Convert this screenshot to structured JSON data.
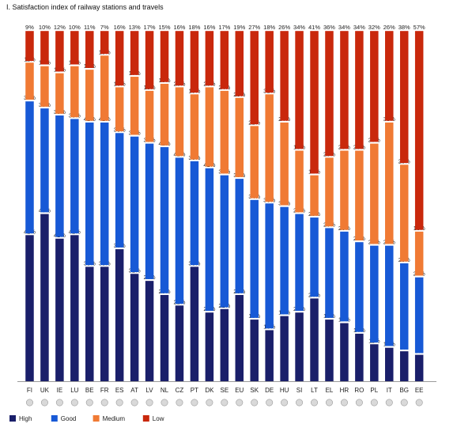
{
  "chart_data": {
    "type": "bar",
    "stacked": true,
    "title": "I.  Satisfaction index of railway stations and travels",
    "categories": [
      "FI",
      "UK",
      "IE",
      "LU",
      "BE",
      "FR",
      "ES",
      "AT",
      "LV",
      "NL",
      "CZ",
      "PT",
      "DK",
      "SE",
      "EU",
      "SK",
      "DE",
      "HU",
      "SI",
      "LT",
      "EL",
      "HR",
      "RO",
      "PL",
      "IT",
      "BG",
      "EE"
    ],
    "series": [
      {
        "name": "High",
        "color": "#1a1f6a",
        "values": [
          42,
          48,
          41,
          42,
          33,
          33,
          38,
          31,
          29,
          25,
          22,
          33,
          20,
          21,
          25,
          18,
          15,
          19,
          20,
          24,
          18,
          17,
          14,
          11,
          10,
          9,
          8
        ]
      },
      {
        "name": "Good",
        "color": "#1759d6",
        "values": [
          38,
          30,
          35,
          33,
          41,
          41,
          33,
          39,
          39,
          42,
          42,
          30,
          41,
          38,
          33,
          34,
          36,
          31,
          28,
          23,
          26,
          26,
          26,
          28,
          29,
          25,
          22
        ]
      },
      {
        "name": "Medium",
        "color": "#f07a34",
        "values": [
          11,
          12,
          12,
          15,
          15,
          19,
          13,
          17,
          15,
          18,
          20,
          19,
          23,
          24,
          23,
          21,
          31,
          24,
          18,
          12,
          20,
          23,
          26,
          29,
          35,
          28,
          13
        ]
      },
      {
        "name": "Low",
        "color": "#c9280c",
        "values": [
          9,
          10,
          12,
          10,
          11,
          7,
          16,
          13,
          17,
          15,
          16,
          18,
          16,
          17,
          19,
          27,
          18,
          26,
          34,
          41,
          36,
          34,
          34,
          32,
          26,
          38,
          57
        ]
      }
    ],
    "value_suffix": "%",
    "ylim": [
      0,
      100
    ],
    "grid": false,
    "legend": "bottom-left"
  },
  "flags": [
    "FI",
    "UK",
    "IE",
    "LU",
    "BE",
    "FR",
    "ES",
    "AT",
    "LV",
    "NL",
    "CZ",
    "PT",
    "DK",
    "SE",
    "EU",
    "SK",
    "DE",
    "HU",
    "SI",
    "LT",
    "EL",
    "HR",
    "RO",
    "PL",
    "IT",
    "BG",
    "EE"
  ]
}
